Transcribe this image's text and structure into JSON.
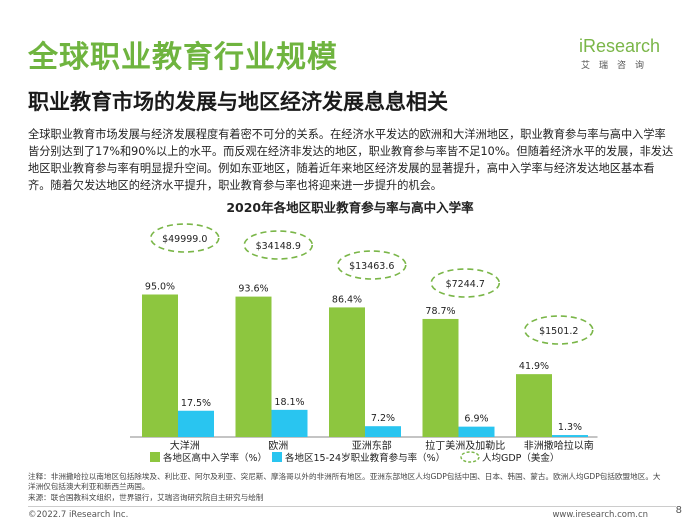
{
  "header": {
    "title": "全球职业教育行业规模",
    "subtitle": "职业教育市场的发展与地区经济发展息息相关"
  },
  "logo": {
    "main": "iResearch",
    "sub": "艾瑞咨询"
  },
  "body_text": "全球职业教育市场发展与经济发展程度有着密不可分的关系。在经济水平发达的欧洲和大洋洲地区，职业教育参与率与高中入学率皆分别达到了17%和90%以上的水平。而反观在经济非发达的地区，职业教育参与率皆不足10%。但随着经济水平的发展，非发达地区职业教育参与率有明显提升空间。例如东亚地区，随着近年来地区经济发展的显著提升，高中入学率与经济发达地区基本看齐。随着欠发达地区的经济水平提升，职业教育参与率也将迎来进一步提升的机会。",
  "chart_data": {
    "type": "bar",
    "title": "2020年各地区职业教育参与率与高中入学率",
    "categories": [
      "大洋洲",
      "欧洲",
      "亚洲东部",
      "拉丁美洲及加勒比",
      "非洲撒哈拉以南"
    ],
    "series": [
      {
        "name": "各地区高中入学率（%）",
        "color": "#8dc63f",
        "values": [
          95.0,
          93.6,
          86.4,
          78.7,
          41.9
        ],
        "labels": [
          "95.0%",
          "93.6%",
          "86.4%",
          "78.7%",
          "41.9%"
        ]
      },
      {
        "name": "各地区15-24岁职业教育参与率（%）",
        "color": "#29c5f0",
        "values": [
          17.5,
          18.1,
          7.2,
          6.9,
          1.3
        ],
        "labels": [
          "17.5%",
          "18.1%",
          "7.2%",
          "6.9%",
          "1.3%"
        ]
      }
    ],
    "gdp": {
      "name": "人均GDP（美金）",
      "values": [
        49999.0,
        34148.9,
        13463.6,
        7244.7,
        1501.2
      ],
      "labels": [
        "$49999.0",
        "$34148.9",
        "$13463.6",
        "$7244.7",
        "$1501.2"
      ]
    },
    "ylim": [
      0,
      100
    ],
    "grid": false,
    "legend_position": "bottom",
    "accent_colors": {
      "gdp_ellipse": "#7ab648"
    }
  },
  "footnote": {
    "note": "注释：非洲撒哈拉以南地区包括除埃及、利比亚、阿尔及利亚、突尼斯、摩洛哥以外的非洲所有地区。亚洲东部地区人均GDP包括中国、日本、韩国、蒙古。欧洲人均GDP包括欧盟地区。大洋洲仅包括澳大利亚和新西兰两国。",
    "source": "来源：联合国教科文组织，世界银行，艾瑞咨询研究院自主研究与绘制"
  },
  "footer": {
    "copyright": "©2022.7 iResearch Inc.",
    "site": "www.iresearch.com.cn",
    "page": "8"
  }
}
